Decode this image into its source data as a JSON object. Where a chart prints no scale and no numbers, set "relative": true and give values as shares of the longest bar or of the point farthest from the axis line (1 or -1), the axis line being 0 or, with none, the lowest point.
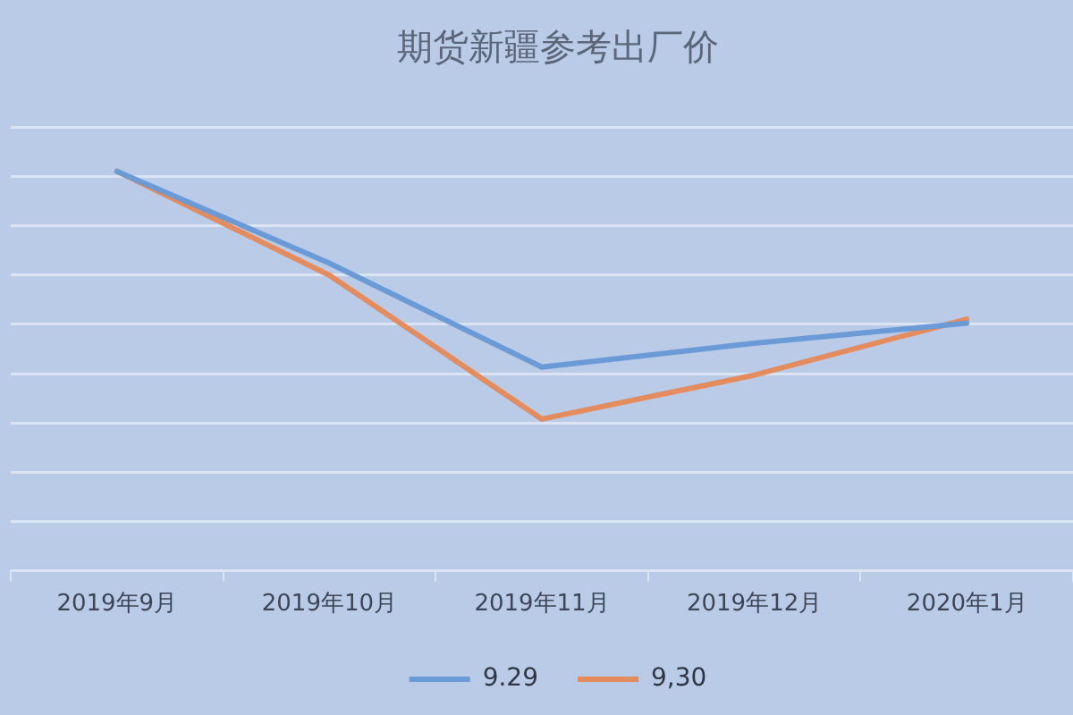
{
  "chart_data": {
    "type": "line",
    "title": "期货新疆参考出厂价",
    "categories": [
      "2019年9月",
      "2019年10月",
      "2019年11月",
      "2019年12月",
      "2020年1月"
    ],
    "relative": true,
    "series": [
      {
        "name": "9.29",
        "color": "#6b9bd6",
        "values": [
          1.0,
          0.77,
          0.51,
          0.57,
          0.62
        ]
      },
      {
        "name": "9,30",
        "color": "#e58c5e",
        "values": [
          1.0,
          0.74,
          0.38,
          0.49,
          0.63
        ]
      }
    ],
    "grid": "y",
    "legend": "bottom",
    "tick_labels": "x"
  }
}
